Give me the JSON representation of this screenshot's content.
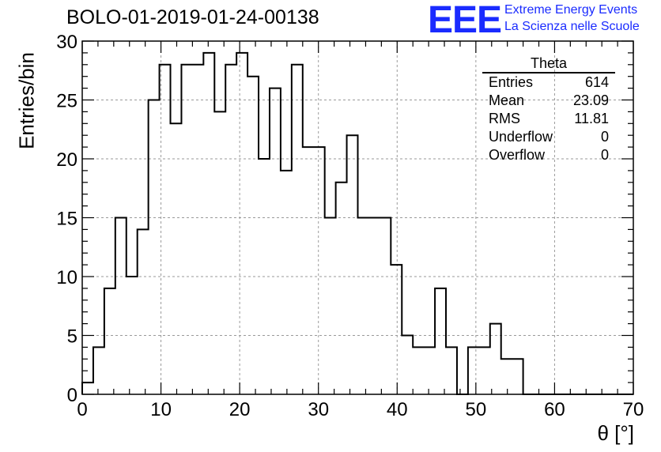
{
  "header": {
    "run_title": "BOLO-01-2019-01-24-00138",
    "logo_text": "EEE",
    "brand_line1": "Extreme Energy Events",
    "brand_line2": "La Scienza nelle Scuole",
    "brand_color": "#1a2bff"
  },
  "stats_box": {
    "title": "Theta",
    "rows": [
      {
        "label": "Entries",
        "value": "614"
      },
      {
        "label": "Mean",
        "value": "23.09"
      },
      {
        "label": "RMS",
        "value": "11.81"
      },
      {
        "label": "Underflow",
        "value": "0"
      },
      {
        "label": "Overflow",
        "value": "0"
      }
    ]
  },
  "chart_data": {
    "type": "histogram",
    "title": "BOLO-01-2019-01-24-00138",
    "xlabel": "θ [°]",
    "ylabel": "Entries/bin",
    "xlim": [
      0,
      70
    ],
    "ylim": [
      0,
      30
    ],
    "xticks": [
      0,
      10,
      20,
      30,
      40,
      50,
      60,
      70
    ],
    "yticks": [
      0,
      5,
      10,
      15,
      20,
      25,
      30
    ],
    "grid": true,
    "bin_width": 1.4,
    "bin_edges_start": 0,
    "series": [
      {
        "values": [
          1,
          4,
          9,
          15,
          10,
          14,
          25,
          28,
          23,
          28,
          28,
          29,
          24,
          28,
          29,
          27,
          20,
          26,
          19,
          28,
          21,
          21,
          15,
          18,
          22,
          15,
          15,
          15,
          11,
          5,
          4,
          4,
          9,
          4,
          0,
          4,
          4,
          6,
          3,
          3,
          0,
          0,
          0,
          0,
          0,
          0,
          0,
          0,
          0,
          0
        ],
        "color": "#000000"
      }
    ]
  }
}
